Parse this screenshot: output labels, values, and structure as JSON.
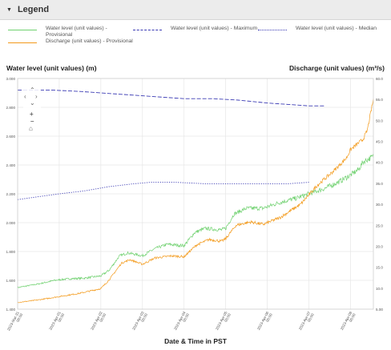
{
  "legend": {
    "title": "Legend",
    "items": [
      {
        "label": "Water level (unit values) - Provisional",
        "color": "#6fd16f",
        "style": "solid"
      },
      {
        "label": "Discharge (unit values) - Provisional",
        "color": "#f39a1b",
        "style": "solid"
      },
      {
        "label": "Water level (unit values) - Maximum",
        "color": "#3b3bb4",
        "style": "dashed"
      },
      {
        "label": "Water level (unit values) - Median",
        "color": "#3b3bb4",
        "style": "dotted"
      }
    ]
  },
  "axes": {
    "left_title": "Water level (unit values) (m)",
    "right_title": "Discharge (unit values) (m³/s)",
    "x_title": "Date & Time in PST"
  },
  "chart_data": {
    "type": "line",
    "y_left_label": "Water level (unit values) (m)",
    "y_right_label": "Discharge (unit values) (m³/s)",
    "x_label": "Date & Time in PST",
    "y_left_ticks": [
      "1.400",
      "1.600",
      "1.800",
      "2.000",
      "2.200",
      "2.400",
      "2.600",
      "2.800",
      "3.000"
    ],
    "y_left_range": [
      1.4,
      3.0
    ],
    "y_right_ticks": [
      "5.00",
      "10.0",
      "15.0",
      "20.0",
      "25.0",
      "30.0",
      "35.0",
      "40.0",
      "45.0",
      "50.0",
      "55.0",
      "60.0"
    ],
    "y_right_range": [
      5,
      60
    ],
    "x_ticks": [
      "2023-Mar-31 00:00",
      "2023-Apr-01 00:00",
      "2023-Apr-02 00:00",
      "2023-Apr-03 00:00",
      "2023-Apr-04 00:00",
      "2023-Apr-05 00:00",
      "2023-Apr-06 00:00",
      "2023-Apr-07 00:00",
      "2023-Apr-08 00:00"
    ],
    "x_range": [
      0,
      8.55
    ],
    "grid": true,
    "series": [
      {
        "name": "Water level (unit values) - Provisional",
        "axis": "left",
        "color": "#6fd16f",
        "noise": 0.02,
        "points": [
          [
            0,
            1.55
          ],
          [
            0.5,
            1.575
          ],
          [
            0.9,
            1.6
          ],
          [
            1.2,
            1.61
          ],
          [
            1.6,
            1.615
          ],
          [
            2.0,
            1.63
          ],
          [
            2.2,
            1.67
          ],
          [
            2.45,
            1.77
          ],
          [
            2.65,
            1.79
          ],
          [
            3.0,
            1.77
          ],
          [
            3.3,
            1.82
          ],
          [
            3.6,
            1.85
          ],
          [
            4.0,
            1.84
          ],
          [
            4.25,
            1.93
          ],
          [
            4.5,
            1.96
          ],
          [
            4.9,
            1.95
          ],
          [
            5.0,
            1.96
          ],
          [
            5.2,
            2.06
          ],
          [
            5.5,
            2.1
          ],
          [
            5.9,
            2.1
          ],
          [
            6.3,
            2.14
          ],
          [
            6.7,
            2.17
          ],
          [
            7.1,
            2.21
          ],
          [
            7.4,
            2.24
          ],
          [
            7.7,
            2.28
          ],
          [
            8.0,
            2.33
          ],
          [
            8.2,
            2.37
          ],
          [
            8.3,
            2.42
          ],
          [
            8.55,
            2.46
          ]
        ]
      },
      {
        "name": "Discharge (unit values) - Provisional",
        "axis": "right",
        "color": "#f39a1b",
        "noise": 0.5,
        "points": [
          [
            0,
            6.6
          ],
          [
            0.5,
            7.2
          ],
          [
            1.0,
            8.0
          ],
          [
            1.5,
            8.8
          ],
          [
            2.0,
            9.9
          ],
          [
            2.2,
            12.0
          ],
          [
            2.5,
            16.0
          ],
          [
            2.7,
            16.8
          ],
          [
            3.0,
            15.7
          ],
          [
            3.3,
            17.2
          ],
          [
            3.7,
            17.7
          ],
          [
            4.0,
            17.5
          ],
          [
            4.3,
            20.3
          ],
          [
            4.6,
            21.6
          ],
          [
            4.9,
            21.2
          ],
          [
            5.0,
            21.8
          ],
          [
            5.25,
            25.0
          ],
          [
            5.6,
            25.8
          ],
          [
            5.9,
            25.2
          ],
          [
            6.3,
            26.8
          ],
          [
            6.8,
            30.0
          ],
          [
            7.2,
            34.5
          ],
          [
            7.6,
            38.0
          ],
          [
            7.9,
            41.0
          ],
          [
            8.0,
            43.0
          ],
          [
            8.3,
            45.5
          ],
          [
            8.4,
            47.5
          ],
          [
            8.55,
            55.0
          ]
        ]
      },
      {
        "name": "Water level (unit values) - Maximum",
        "axis": "left",
        "color": "#3b3bb4",
        "points": [
          [
            0,
            2.92
          ],
          [
            0.8,
            2.92
          ],
          [
            1.5,
            2.91
          ],
          [
            2.0,
            2.9
          ],
          [
            2.5,
            2.89
          ],
          [
            3.0,
            2.88
          ],
          [
            3.5,
            2.87
          ],
          [
            4.0,
            2.86
          ],
          [
            4.7,
            2.86
          ],
          [
            5.3,
            2.85
          ],
          [
            6.0,
            2.83
          ],
          [
            6.5,
            2.82
          ],
          [
            7.0,
            2.81
          ],
          [
            7.38,
            2.81
          ]
        ]
      },
      {
        "name": "Water level (unit values) - Median",
        "axis": "left",
        "color": "#3b3bb4",
        "points": [
          [
            0,
            2.16
          ],
          [
            0.5,
            2.18
          ],
          [
            1.0,
            2.2
          ],
          [
            1.6,
            2.22
          ],
          [
            2.2,
            2.25
          ],
          [
            2.8,
            2.27
          ],
          [
            3.2,
            2.28
          ],
          [
            3.8,
            2.28
          ],
          [
            4.5,
            2.27
          ],
          [
            5.0,
            2.27
          ],
          [
            6.0,
            2.27
          ],
          [
            6.5,
            2.27
          ],
          [
            7.0,
            2.28
          ]
        ]
      }
    ]
  }
}
